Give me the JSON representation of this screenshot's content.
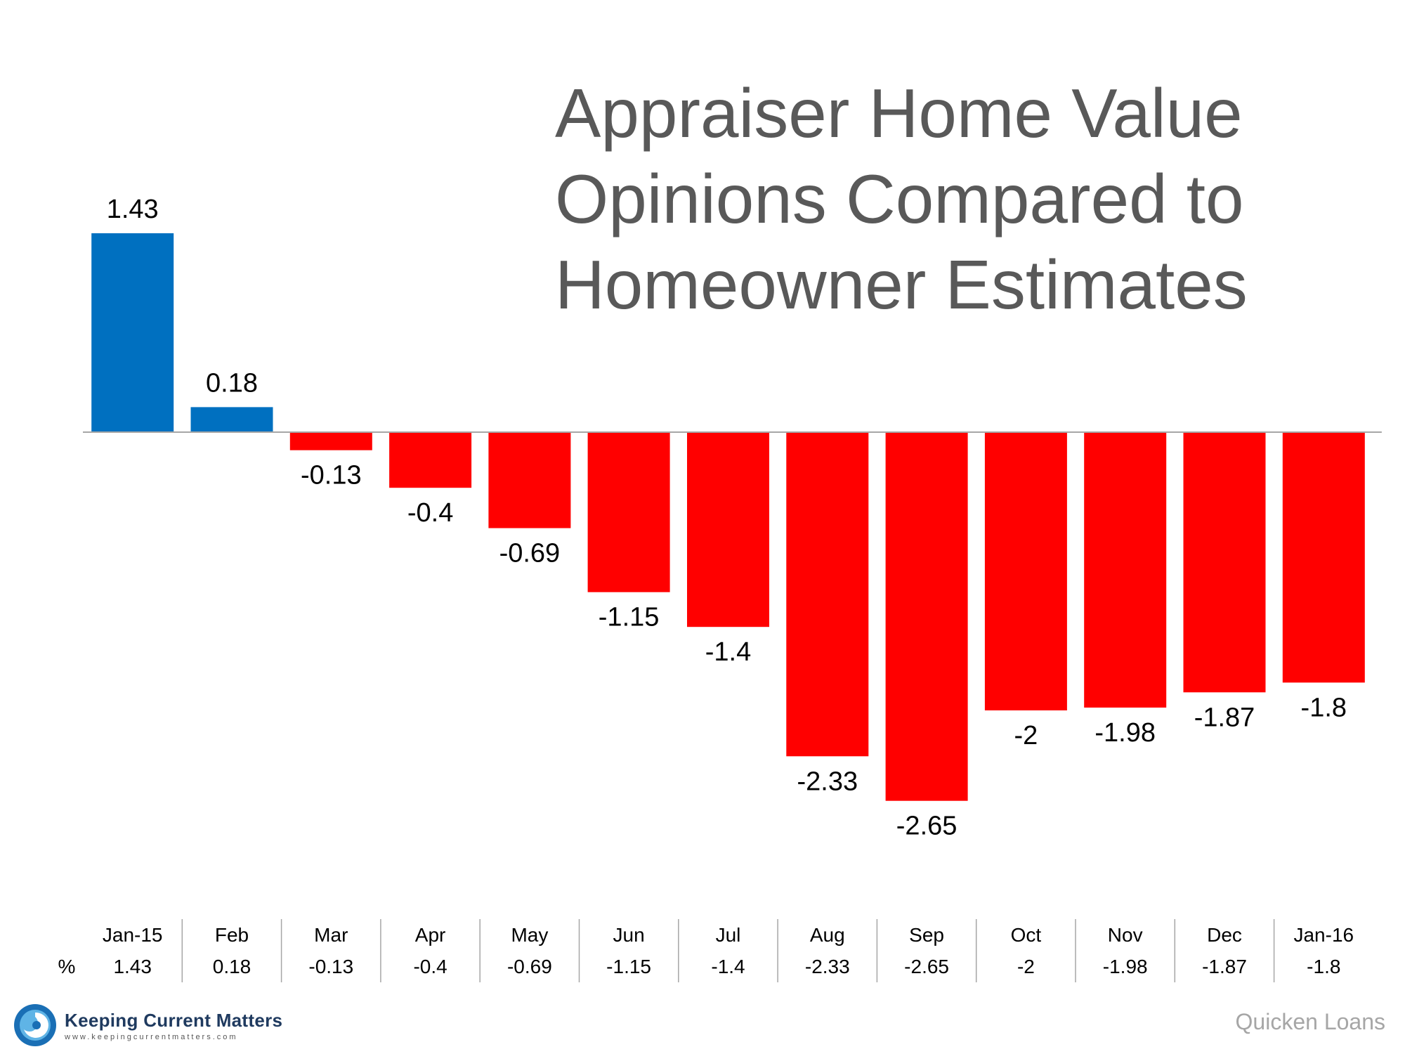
{
  "chart_data": {
    "type": "bar",
    "title_lines": [
      "Appraiser Home Value",
      "Opinions Compared to",
      "Homeowner Estimates"
    ],
    "categories": [
      "Jan-15",
      "Feb",
      "Mar",
      "Apr",
      "May",
      "Jun",
      "Jul",
      "Aug",
      "Sep",
      "Oct",
      "Nov",
      "Dec",
      "Jan-16"
    ],
    "values": [
      1.43,
      0.18,
      -0.13,
      -0.4,
      -0.69,
      -1.15,
      -1.4,
      -2.33,
      -2.65,
      -2,
      -1.98,
      -1.87,
      -1.8
    ],
    "value_labels": [
      "1.43",
      "0.18",
      "-0.13",
      "-0.4",
      "-0.69",
      "-1.15",
      "-1.4",
      "-2.33",
      "-2.65",
      "-2",
      "-1.98",
      "-1.87",
      "-1.8"
    ],
    "series_row_label": "%",
    "colors": {
      "positive": "#0070C0",
      "negative": "#FF0000",
      "axis": "#A6A6A6",
      "text": "#000000"
    },
    "grid": false,
    "legend": "none"
  },
  "branding": {
    "logo_name": "Keeping Current Matters",
    "logo_url": "www.keepingcurrentmatters.com",
    "source": "Quicken Loans"
  }
}
